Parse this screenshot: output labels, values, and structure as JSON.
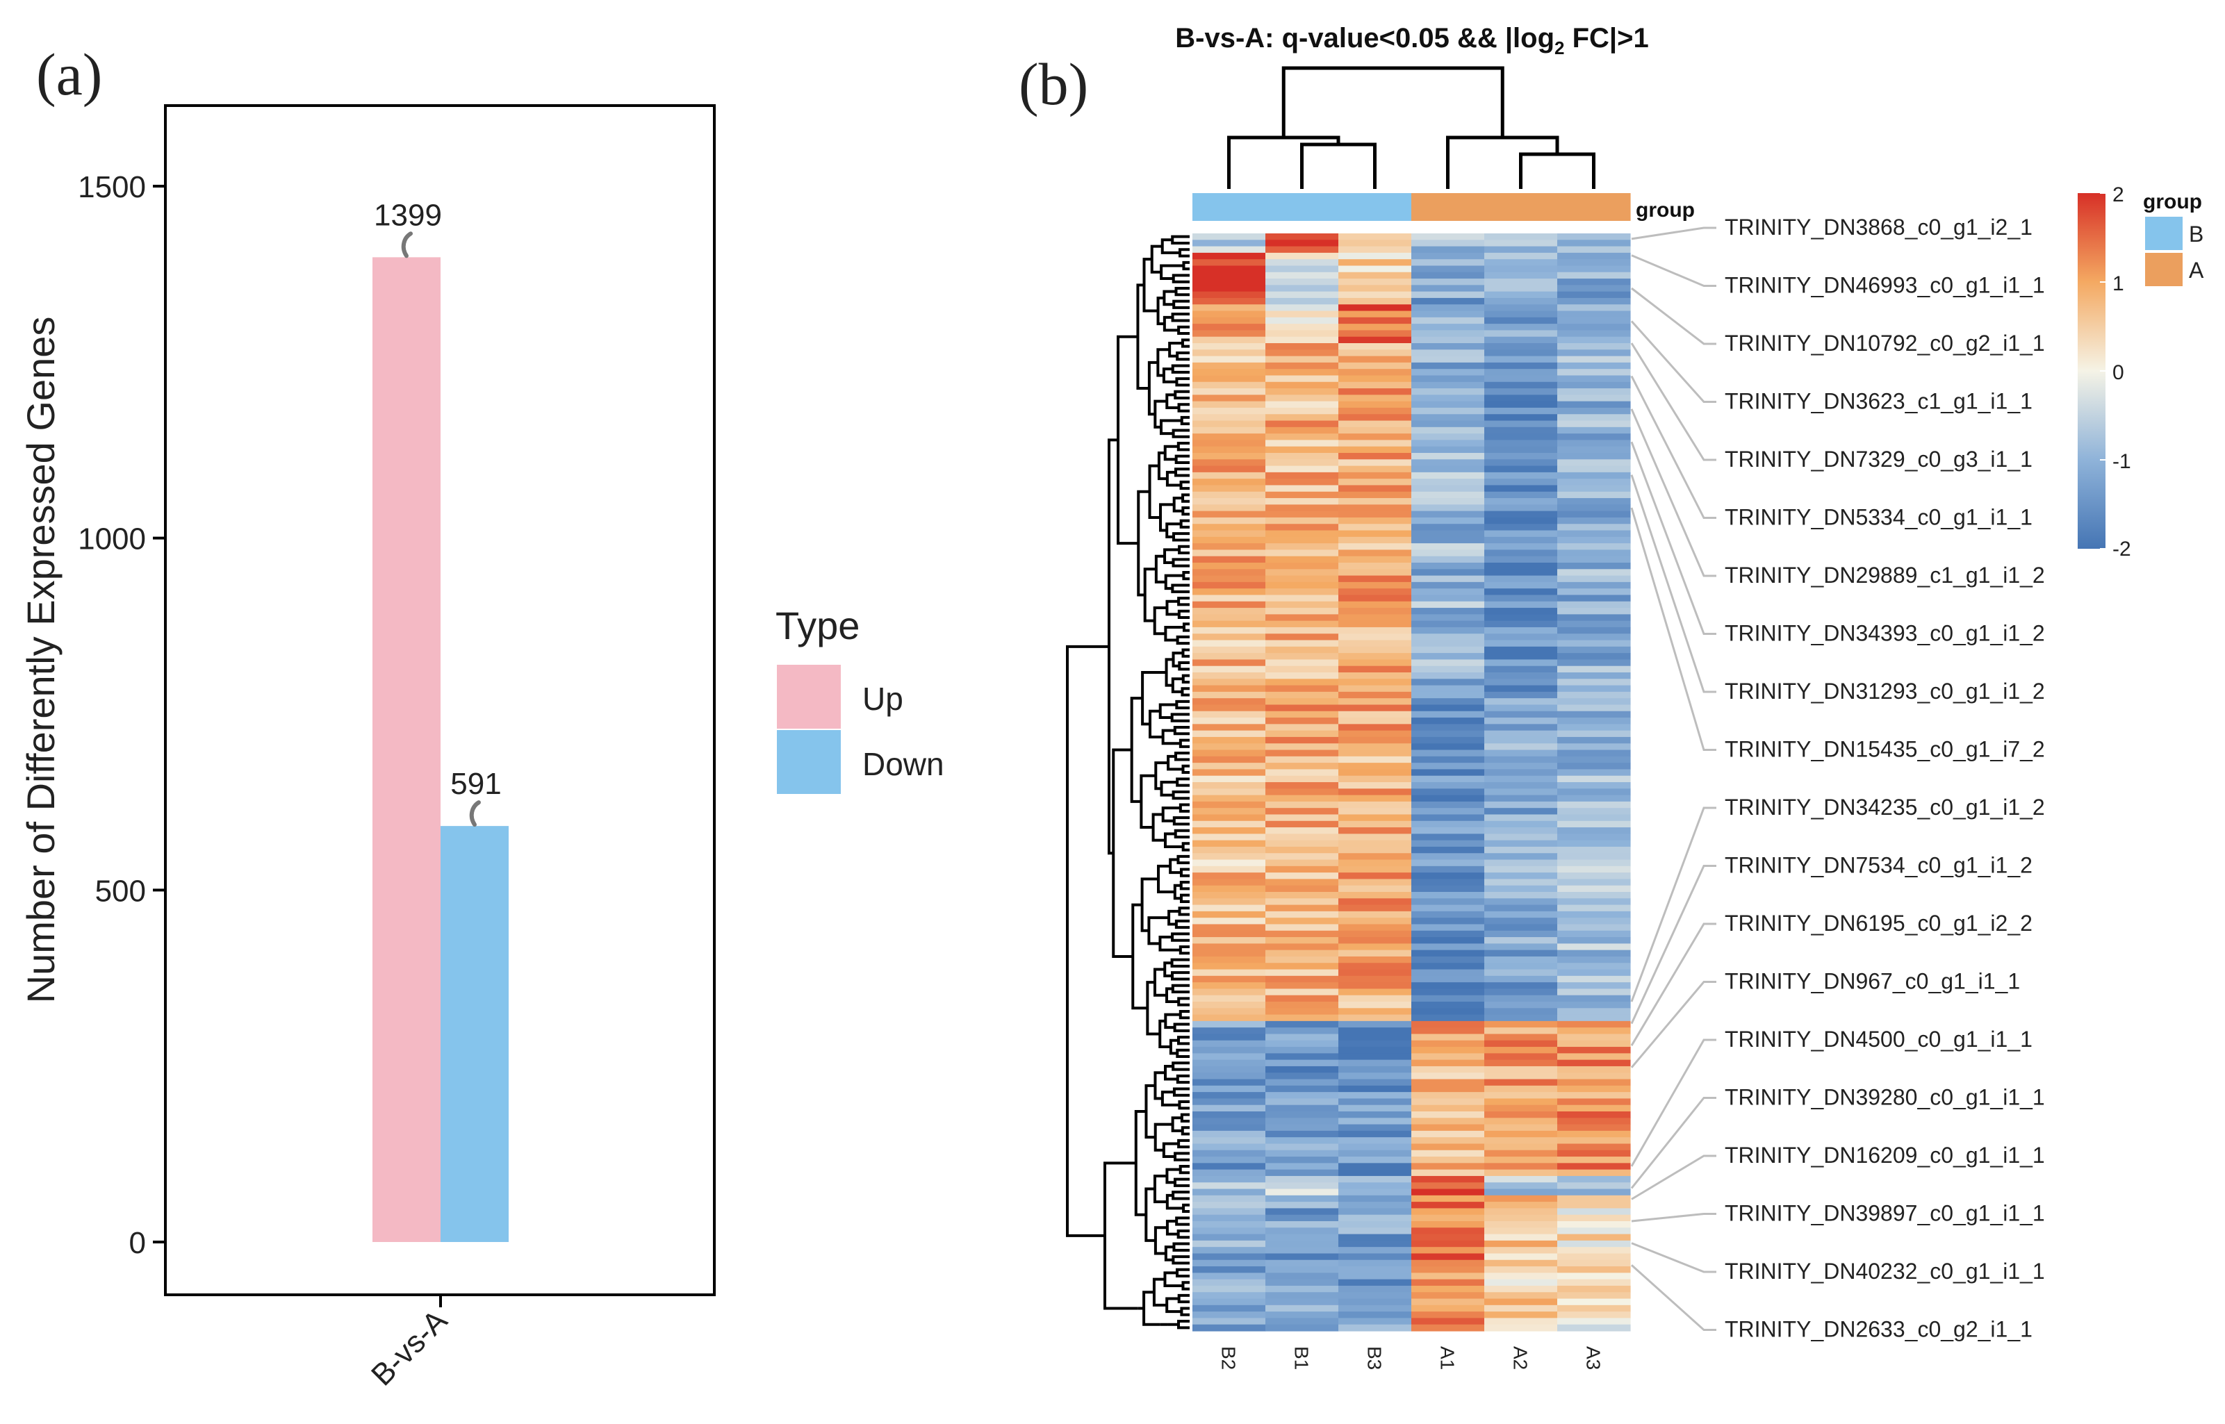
{
  "panels": {
    "a_label": "(a)",
    "b_label": "(b)"
  },
  "colors": {
    "up": "#f4b9c4",
    "down": "#85c4ec",
    "group_B": "#85c4ec",
    "group_A": "#eb9f5e",
    "heat_high": "#d73027",
    "heat_mid": "#f5f3e6",
    "heat_low": "#4575b4"
  },
  "chart_data": [
    {
      "type": "bar",
      "title": "",
      "categories": [
        "B-vs-A"
      ],
      "series": [
        {
          "name": "Up",
          "values": [
            1399
          ]
        },
        {
          "name": "Down",
          "values": [
            591
          ]
        }
      ],
      "data_labels": [
        "1399",
        "591"
      ],
      "xlabel": "",
      "ylabel": "Number of Differently Expressed Genes",
      "ylim": [
        -75,
        1600
      ],
      "yticks": [
        0,
        500,
        1000,
        1500
      ],
      "ytick_labels": [
        "0",
        "500",
        "1000",
        "1500"
      ],
      "legend_title": "Type",
      "legend": [
        "Up",
        "Down"
      ],
      "legend_position": "right",
      "grid": false
    },
    {
      "type": "heatmap",
      "title_prefix": "B-vs-A: q-value<0.05 && |log",
      "title_sub": "2",
      "title_suffix": " FC|>1",
      "columns": [
        "B2",
        "B1",
        "B3",
        "A1",
        "A2",
        "A3"
      ],
      "column_groups": [
        "B",
        "B",
        "B",
        "A",
        "A",
        "A"
      ],
      "group_label": "group",
      "legend_title": "group",
      "legend_groups": [
        "B",
        "A"
      ],
      "colorbar_ticks": [
        2,
        1,
        0,
        -1,
        -2
      ],
      "colorbar_tick_labels": [
        "2",
        "1",
        "0",
        "-1",
        "-2"
      ],
      "blocks": [
        {
          "name": "top",
          "rows": 3,
          "pattern": [
            -0.6,
            2.0,
            0.3,
            -1.0,
            -0.8,
            -1.0
          ]
        },
        {
          "name": "B2-high",
          "rows": 8,
          "pattern": [
            1.9,
            -0.2,
            0.4,
            -1.2,
            -0.9,
            -1.1
          ]
        },
        {
          "name": "B3-high",
          "rows": 6,
          "pattern": [
            0.9,
            0.1,
            1.7,
            -1.2,
            -1.4,
            -1.2
          ]
        },
        {
          "name": "B-up-1",
          "rows": 55,
          "pattern": [
            0.8,
            0.8,
            0.9,
            -1.0,
            -1.5,
            -1.1
          ]
        },
        {
          "name": "B-up-2",
          "rows": 50,
          "pattern": [
            0.7,
            0.9,
            0.9,
            -1.6,
            -1.2,
            -0.9
          ]
        },
        {
          "name": "A-up-1",
          "rows": 24,
          "pattern": [
            -1.3,
            -1.4,
            -1.5,
            0.9,
            1.1,
            1.2
          ]
        },
        {
          "name": "A1-high",
          "rows": 3,
          "pattern": [
            -0.6,
            -0.6,
            -0.6,
            2.0,
            -0.6,
            -0.6
          ]
        },
        {
          "name": "A-up-2",
          "rows": 21,
          "pattern": [
            -1.2,
            -1.3,
            -1.3,
            1.3,
            0.5,
            0.2
          ]
        }
      ],
      "row_labels": [
        "TRINITY_DN3868_c0_g1_i2_1",
        "TRINITY_DN46993_c0_g1_i1_1",
        "TRINITY_DN10792_c0_g2_i1_1",
        "TRINITY_DN3623_c1_g1_i1_1",
        "TRINITY_DN7329_c0_g3_i1_1",
        "TRINITY_DN5334_c0_g1_i1_1",
        "TRINITY_DN29889_c1_g1_i1_2",
        "TRINITY_DN34393_c0_g1_i1_2",
        "TRINITY_DN31293_c0_g1_i1_2",
        "TRINITY_DN15435_c0_g1_i7_2",
        "TRINITY_DN34235_c0_g1_i1_2",
        "TRINITY_DN7534_c0_g1_i1_2",
        "TRINITY_DN6195_c0_g1_i2_2",
        "TRINITY_DN967_c0_g1_i1_1",
        "TRINITY_DN4500_c0_g1_i1_1",
        "TRINITY_DN39280_c0_g1_i1_1",
        "TRINITY_DN16209_c0_g1_i1_1",
        "TRINITY_DN39897_c0_g1_i1_1",
        "TRINITY_DN40232_c0_g1_i1_1",
        "TRINITY_DN2633_c0_g2_i1_1"
      ],
      "row_label_anchors": [
        0.005,
        0.02,
        0.05,
        0.08,
        0.1,
        0.13,
        0.16,
        0.19,
        0.22,
        0.25,
        0.7,
        0.72,
        0.74,
        0.76,
        0.85,
        0.87,
        0.88,
        0.9,
        0.92,
        0.94
      ]
    }
  ]
}
